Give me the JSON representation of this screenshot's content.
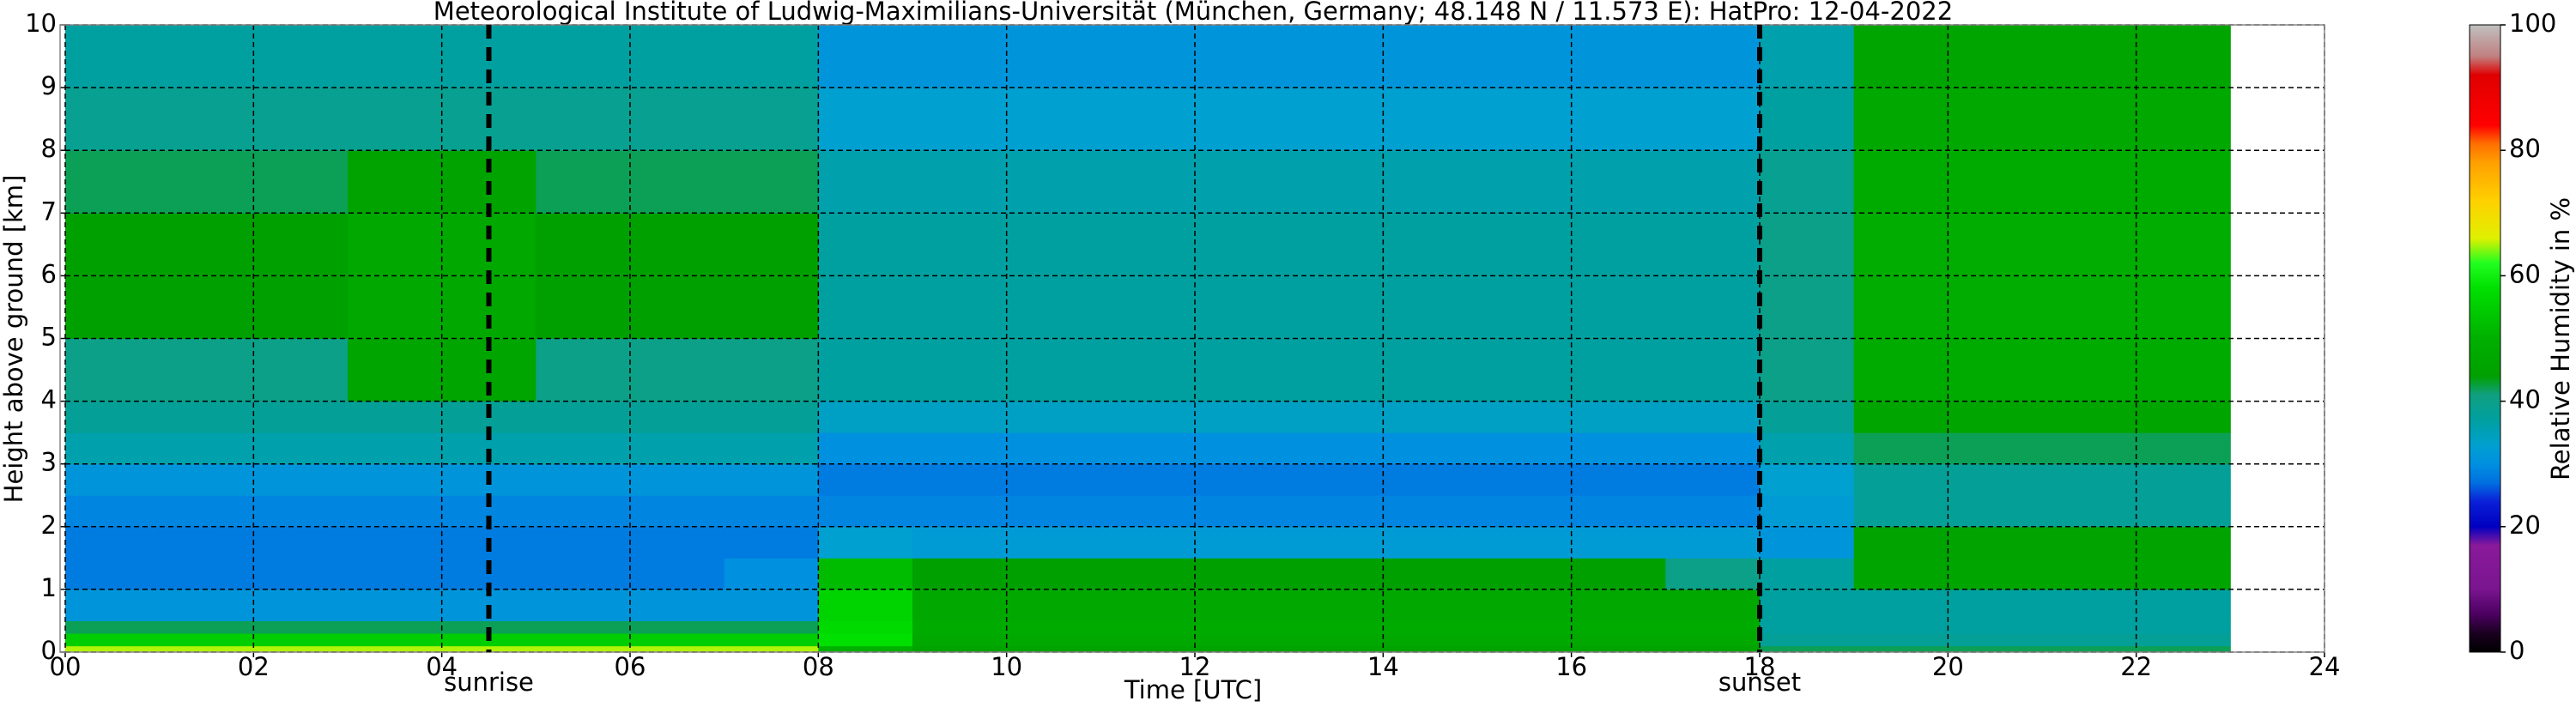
{
  "chart_data": {
    "type": "heatmap",
    "title": "Meteorological Institute of Ludwig-Maximilians-Universität (München, Germany; 48.148 N / 11.573 E):    HatPro: 12-04-2022",
    "x_label": "Time [UTC]",
    "y_label": "Height above ground [km]",
    "colorbar_label": "Relative Humidity in %",
    "x_edges": [
      0,
      1,
      2,
      3,
      4,
      5,
      6,
      7,
      8,
      9,
      10,
      11,
      12,
      13,
      14,
      15,
      16,
      17,
      18,
      19,
      20,
      21,
      22,
      23
    ],
    "y_edges": [
      0,
      0.1,
      0.3,
      0.5,
      1,
      1.5,
      2,
      2.5,
      3,
      3.5,
      4,
      5,
      6,
      7,
      8,
      9,
      10
    ],
    "z": [
      [
        65,
        65,
        65,
        65,
        65,
        65,
        65,
        65,
        50,
        45,
        45,
        45,
        45,
        45,
        45,
        45,
        45,
        45,
        42,
        42,
        42,
        42,
        42
      ],
      [
        55,
        55,
        55,
        55,
        55,
        55,
        55,
        55,
        58,
        47,
        47,
        47,
        47,
        47,
        47,
        47,
        47,
        47,
        38,
        38,
        38,
        38,
        38
      ],
      [
        42,
        42,
        42,
        42,
        42,
        42,
        42,
        42,
        57,
        48,
        48,
        48,
        48,
        48,
        48,
        48,
        48,
        48,
        37,
        37,
        37,
        37,
        37
      ],
      [
        31,
        31,
        31,
        31,
        31,
        31,
        31,
        31,
        56,
        47,
        47,
        47,
        47,
        47,
        47,
        47,
        47,
        47,
        37,
        37,
        37,
        37,
        37
      ],
      [
        28,
        28,
        28,
        28,
        28,
        28,
        28,
        30,
        52,
        44,
        44,
        44,
        44,
        44,
        44,
        44,
        44,
        40,
        37,
        46,
        46,
        46,
        46
      ],
      [
        28,
        28,
        28,
        28,
        28,
        28,
        28,
        28,
        33,
        32,
        32,
        32,
        32,
        32,
        32,
        32,
        32,
        32,
        31,
        45,
        45,
        45,
        45
      ],
      [
        29,
        29,
        29,
        29,
        29,
        29,
        29,
        29,
        29,
        29,
        29,
        29,
        29,
        29,
        29,
        29,
        29,
        29,
        32,
        38,
        38,
        38,
        38
      ],
      [
        31,
        31,
        31,
        31,
        31,
        31,
        31,
        31,
        28,
        28,
        28,
        28,
        28,
        28,
        28,
        28,
        28,
        28,
        33,
        38,
        38,
        38,
        38
      ],
      [
        36,
        36,
        36,
        36,
        36,
        36,
        36,
        36,
        30,
        30,
        30,
        30,
        30,
        30,
        30,
        30,
        30,
        30,
        36,
        42,
        42,
        42,
        42
      ],
      [
        38,
        38,
        38,
        38,
        38,
        38,
        38,
        38,
        34,
        34,
        34,
        34,
        34,
        34,
        34,
        34,
        34,
        34,
        38,
        46,
        46,
        46,
        46
      ],
      [
        40,
        40,
        40,
        46,
        46,
        40,
        40,
        40,
        37,
        37,
        37,
        37,
        37,
        37,
        37,
        37,
        37,
        37,
        40,
        48,
        48,
        48,
        48
      ],
      [
        44,
        44,
        44,
        47,
        47,
        44,
        44,
        44,
        37,
        37,
        37,
        37,
        37,
        37,
        37,
        37,
        37,
        37,
        40,
        49,
        49,
        49,
        49
      ],
      [
        44,
        44,
        44,
        47,
        47,
        44,
        44,
        44,
        37,
        37,
        37,
        37,
        37,
        37,
        37,
        37,
        37,
        37,
        40,
        49,
        49,
        49,
        49
      ],
      [
        42,
        42,
        42,
        45,
        45,
        42,
        42,
        42,
        36,
        36,
        36,
        36,
        36,
        36,
        36,
        36,
        36,
        36,
        39,
        48,
        48,
        48,
        48
      ],
      [
        39,
        39,
        39,
        39,
        39,
        39,
        39,
        39,
        33,
        33,
        33,
        33,
        33,
        33,
        33,
        33,
        33,
        33,
        37,
        47,
        47,
        47,
        47
      ],
      [
        37,
        37,
        37,
        37,
        37,
        37,
        37,
        37,
        31,
        31,
        31,
        31,
        31,
        31,
        31,
        31,
        31,
        31,
        36,
        46,
        46,
        46,
        46
      ]
    ],
    "xlim": [
      0,
      24
    ],
    "ylim": [
      0,
      10
    ],
    "xticks": [
      {
        "value": 0,
        "label": "00"
      },
      {
        "value": 2,
        "label": "02"
      },
      {
        "value": 4,
        "label": "04"
      },
      {
        "value": 6,
        "label": "06"
      },
      {
        "value": 8,
        "label": "08"
      },
      10,
      12,
      14,
      16,
      18,
      20,
      22,
      24
    ],
    "yticks": [
      0,
      1,
      2,
      3,
      4,
      5,
      6,
      7,
      8,
      9,
      10
    ],
    "grid": true,
    "clim": [
      0,
      100
    ],
    "cticks": [
      0,
      20,
      40,
      60,
      80,
      100
    ],
    "colorscale": [
      [
        0,
        "#000000"
      ],
      [
        3,
        "#1a0020"
      ],
      [
        6,
        "#4b0060"
      ],
      [
        10,
        "#7a1590"
      ],
      [
        17,
        "#8a1a9a"
      ],
      [
        20,
        "#0000c0"
      ],
      [
        24,
        "#0a20d8"
      ],
      [
        27,
        "#0070e0"
      ],
      [
        30,
        "#0090e0"
      ],
      [
        33,
        "#00a0d0"
      ],
      [
        37,
        "#00a0a0"
      ],
      [
        41,
        "#10a080"
      ],
      [
        44,
        "#00a000"
      ],
      [
        50,
        "#00b000"
      ],
      [
        58,
        "#00e000"
      ],
      [
        62,
        "#20ff20"
      ],
      [
        66,
        "#e0f000"
      ],
      [
        72,
        "#ffd000"
      ],
      [
        78,
        "#ffa000"
      ],
      [
        81,
        "#ff7000"
      ],
      [
        84,
        "#ff0000"
      ],
      [
        92,
        "#e00000"
      ],
      [
        95,
        "#c08080"
      ],
      [
        100,
        "#c0c0c0"
      ]
    ],
    "annotations": [
      {
        "text": "sunrise",
        "x": 4.5
      },
      {
        "text": "sunset",
        "x": 18
      }
    ]
  }
}
